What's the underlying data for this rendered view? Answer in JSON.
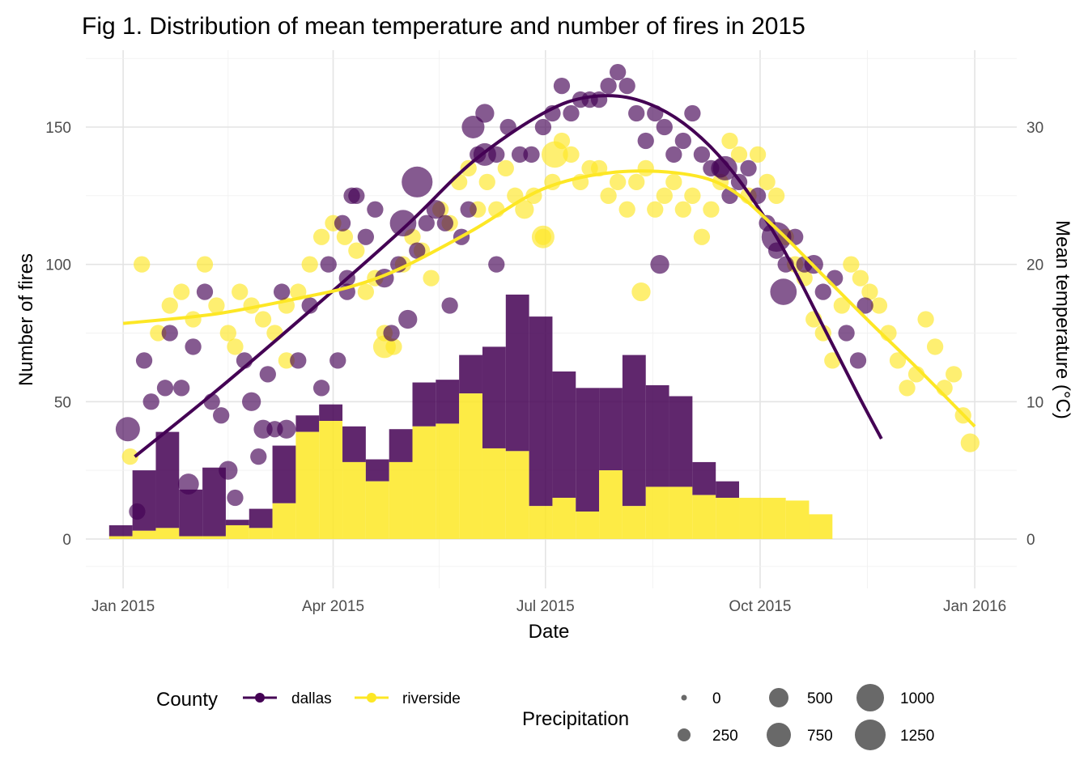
{
  "chart_data": {
    "type": "bar+scatter+line",
    "title": "Fig 1. Distribution of mean temperature and number of fires in 2015",
    "xlabel": "Date",
    "ylabel": "Number of fires",
    "y2label": "Mean temperature (°C)",
    "x_ticks": [
      "Jan 2015",
      "Apr 2015",
      "Jul 2015",
      "Oct 2015",
      "Jan 2016"
    ],
    "y_ticks": [
      0,
      50,
      100,
      150
    ],
    "y2_ticks": [
      0,
      10,
      20,
      30
    ],
    "ylim": [
      -18,
      178
    ],
    "y2lim": [
      -3.6,
      35.6
    ],
    "xlim": [
      "2014-12-16",
      "2016-01-19"
    ],
    "grid": true,
    "colors": {
      "dallas": "#440154",
      "riverside": "#FDE725"
    },
    "histogram": {
      "bin_days": 10,
      "start": "2014-12-26",
      "dallas_total": [
        5,
        25,
        39,
        18,
        26,
        7,
        11,
        34,
        45,
        49,
        41,
        29,
        40,
        57,
        58,
        67,
        70,
        89,
        81,
        61,
        55,
        55,
        67,
        56,
        52,
        28,
        21,
        0,
        0,
        0,
        0,
        0
      ],
      "riverside": [
        1,
        3,
        4,
        1,
        1,
        5,
        4,
        13,
        39,
        43,
        28,
        21,
        28,
        41,
        42,
        53,
        33,
        32,
        12,
        15,
        10,
        25,
        12,
        19,
        19,
        16,
        15,
        15,
        15,
        14,
        9,
        0
      ]
    },
    "series": [
      {
        "name": "dallas",
        "smooth_temperature": [
          [
            5,
            6.0
          ],
          [
            40,
            10.8
          ],
          [
            80,
            16.6
          ],
          [
            120,
            22.6
          ],
          [
            150,
            27.5
          ],
          [
            180,
            31.0
          ],
          [
            200,
            32.2
          ],
          [
            220,
            32.0
          ],
          [
            240,
            30.3
          ],
          [
            260,
            27.0
          ],
          [
            280,
            22.0
          ],
          [
            300,
            15.5
          ],
          [
            315,
            10.5
          ],
          [
            325,
            7.3
          ]
        ]
      },
      {
        "name": "riverside",
        "smooth_temperature": [
          [
            0,
            15.7
          ],
          [
            40,
            16.4
          ],
          [
            80,
            17.7
          ],
          [
            100,
            18.5
          ],
          [
            120,
            19.8
          ],
          [
            150,
            22.5
          ],
          [
            180,
            25.5
          ],
          [
            210,
            26.7
          ],
          [
            240,
            26.6
          ],
          [
            260,
            25.5
          ],
          [
            280,
            22.6
          ],
          [
            300,
            19.2
          ],
          [
            320,
            15.8
          ],
          [
            340,
            12.5
          ],
          [
            365,
            8.2
          ]
        ]
      }
    ],
    "points": {
      "dallas": [
        [
          2,
          8,
          120
        ],
        [
          6,
          2,
          40
        ],
        [
          9,
          13,
          40
        ],
        [
          12,
          10,
          40
        ],
        [
          18,
          11,
          40
        ],
        [
          20,
          15,
          40
        ],
        [
          25,
          11,
          40
        ],
        [
          28,
          4,
          80
        ],
        [
          30,
          14,
          40
        ],
        [
          35,
          18,
          40
        ],
        [
          38,
          10,
          40
        ],
        [
          42,
          9,
          40
        ],
        [
          45,
          5,
          60
        ],
        [
          48,
          3,
          40
        ],
        [
          52,
          13,
          40
        ],
        [
          55,
          10,
          60
        ],
        [
          58,
          6,
          40
        ],
        [
          62,
          12,
          40
        ],
        [
          65,
          8,
          40
        ],
        [
          68,
          18,
          40
        ],
        [
          70,
          8,
          60
        ],
        [
          75,
          13,
          40
        ],
        [
          80,
          17,
          40
        ],
        [
          85,
          11,
          40
        ],
        [
          88,
          20,
          40
        ],
        [
          92,
          13,
          40
        ],
        [
          96,
          19,
          40
        ],
        [
          98,
          25,
          40
        ],
        [
          100,
          25,
          40
        ],
        [
          104,
          22,
          40
        ],
        [
          108,
          24,
          40
        ],
        [
          112,
          19,
          60
        ],
        [
          115,
          15,
          40
        ],
        [
          118,
          20,
          40
        ],
        [
          122,
          16,
          60
        ],
        [
          126,
          21,
          40
        ],
        [
          130,
          23,
          40
        ],
        [
          134,
          24,
          60
        ],
        [
          138,
          23,
          40
        ],
        [
          140,
          17,
          40
        ],
        [
          145,
          22,
          40
        ],
        [
          148,
          24,
          40
        ],
        [
          152,
          28,
          40
        ],
        [
          155,
          31,
          60
        ],
        [
          160,
          28,
          40
        ],
        [
          165,
          30,
          40
        ],
        [
          170,
          28,
          40
        ],
        [
          175,
          28,
          40
        ],
        [
          180,
          30,
          40
        ],
        [
          184,
          31,
          40
        ],
        [
          188,
          33,
          40
        ],
        [
          192,
          31,
          40
        ],
        [
          196,
          32,
          40
        ],
        [
          200,
          32,
          40
        ],
        [
          204,
          32,
          40
        ],
        [
          208,
          33,
          40
        ],
        [
          212,
          34,
          40
        ],
        [
          216,
          33,
          40
        ],
        [
          220,
          31,
          40
        ],
        [
          224,
          29,
          40
        ],
        [
          228,
          31,
          40
        ],
        [
          232,
          30,
          40
        ],
        [
          236,
          28,
          40
        ],
        [
          240,
          29,
          40
        ],
        [
          244,
          31,
          40
        ],
        [
          248,
          28,
          40
        ],
        [
          252,
          27,
          40
        ],
        [
          256,
          27,
          60
        ],
        [
          260,
          25,
          40
        ],
        [
          264,
          26,
          40
        ],
        [
          268,
          27,
          40
        ],
        [
          272,
          25,
          40
        ],
        [
          276,
          23,
          40
        ],
        [
          280,
          21,
          40
        ],
        [
          284,
          20,
          40
        ],
        [
          288,
          22,
          40
        ],
        [
          292,
          20,
          40
        ],
        [
          296,
          20,
          60
        ],
        [
          300,
          18,
          40
        ],
        [
          305,
          19,
          40
        ],
        [
          310,
          15,
          40
        ],
        [
          315,
          13,
          40
        ],
        [
          318,
          17,
          40
        ],
        [
          120,
          23,
          150
        ],
        [
          126,
          26,
          220
        ],
        [
          150,
          30,
          100
        ],
        [
          155,
          28,
          100
        ],
        [
          280,
          22,
          200
        ],
        [
          283,
          18,
          150
        ],
        [
          258,
          27,
          120
        ],
        [
          60,
          8,
          60
        ],
        [
          160,
          20,
          40
        ],
        [
          230,
          20,
          60
        ],
        [
          94,
          23,
          40
        ],
        [
          96,
          18,
          40
        ]
      ],
      "riverside": [
        [
          3,
          6,
          40
        ],
        [
          8,
          20,
          40
        ],
        [
          15,
          15,
          40
        ],
        [
          20,
          17,
          40
        ],
        [
          25,
          18,
          40
        ],
        [
          30,
          16,
          40
        ],
        [
          35,
          20,
          40
        ],
        [
          40,
          17,
          40
        ],
        [
          45,
          15,
          40
        ],
        [
          50,
          18,
          40
        ],
        [
          55,
          17,
          40
        ],
        [
          60,
          16,
          40
        ],
        [
          65,
          15,
          40
        ],
        [
          70,
          17,
          40
        ],
        [
          75,
          18,
          40
        ],
        [
          80,
          20,
          40
        ],
        [
          85,
          22,
          40
        ],
        [
          90,
          23,
          40
        ],
        [
          95,
          22,
          40
        ],
        [
          100,
          21,
          40
        ],
        [
          104,
          18,
          40
        ],
        [
          108,
          19,
          40
        ],
        [
          112,
          15,
          40
        ],
        [
          116,
          14,
          40
        ],
        [
          120,
          20,
          40
        ],
        [
          124,
          22,
          40
        ],
        [
          128,
          21,
          40
        ],
        [
          132,
          19,
          40
        ],
        [
          136,
          24,
          40
        ],
        [
          140,
          23,
          40
        ],
        [
          144,
          26,
          40
        ],
        [
          148,
          27,
          40
        ],
        [
          152,
          24,
          40
        ],
        [
          156,
          26,
          40
        ],
        [
          160,
          24,
          40
        ],
        [
          164,
          27,
          40
        ],
        [
          168,
          25,
          40
        ],
        [
          172,
          24,
          60
        ],
        [
          176,
          25,
          40
        ],
        [
          180,
          22,
          40
        ],
        [
          184,
          26,
          40
        ],
        [
          188,
          29,
          40
        ],
        [
          192,
          28,
          40
        ],
        [
          196,
          26,
          40
        ],
        [
          200,
          27,
          40
        ],
        [
          204,
          27,
          40
        ],
        [
          208,
          25,
          40
        ],
        [
          212,
          26,
          40
        ],
        [
          216,
          24,
          40
        ],
        [
          220,
          26,
          40
        ],
        [
          224,
          27,
          40
        ],
        [
          228,
          24,
          40
        ],
        [
          232,
          25,
          40
        ],
        [
          236,
          26,
          40
        ],
        [
          240,
          24,
          40
        ],
        [
          244,
          25,
          40
        ],
        [
          248,
          22,
          40
        ],
        [
          252,
          24,
          40
        ],
        [
          256,
          26,
          40
        ],
        [
          260,
          29,
          40
        ],
        [
          264,
          28,
          40
        ],
        [
          268,
          25,
          40
        ],
        [
          272,
          28,
          40
        ],
        [
          276,
          26,
          40
        ],
        [
          280,
          25,
          40
        ],
        [
          284,
          22,
          40
        ],
        [
          288,
          20,
          40
        ],
        [
          292,
          19,
          40
        ],
        [
          296,
          16,
          40
        ],
        [
          300,
          15,
          40
        ],
        [
          304,
          13,
          40
        ],
        [
          308,
          17,
          40
        ],
        [
          312,
          20,
          40
        ],
        [
          316,
          19,
          40
        ],
        [
          320,
          18,
          40
        ],
        [
          324,
          17,
          40
        ],
        [
          328,
          15,
          40
        ],
        [
          332,
          13,
          40
        ],
        [
          336,
          11,
          40
        ],
        [
          340,
          12,
          40
        ],
        [
          344,
          16,
          40
        ],
        [
          348,
          14,
          40
        ],
        [
          352,
          11,
          40
        ],
        [
          356,
          12,
          40
        ],
        [
          360,
          9,
          40
        ],
        [
          363,
          7,
          60
        ],
        [
          180,
          22,
          100
        ],
        [
          185,
          28,
          150
        ],
        [
          70,
          13,
          40
        ],
        [
          48,
          14,
          40
        ],
        [
          112,
          14,
          100
        ],
        [
          222,
          18,
          60
        ]
      ]
    },
    "legend": {
      "county_title": "County",
      "county_items": [
        "dallas",
        "riverside"
      ],
      "precip_title": "Precipitation",
      "precip_items": [
        "0",
        "250",
        "500",
        "750",
        "1000",
        "1250"
      ]
    }
  }
}
